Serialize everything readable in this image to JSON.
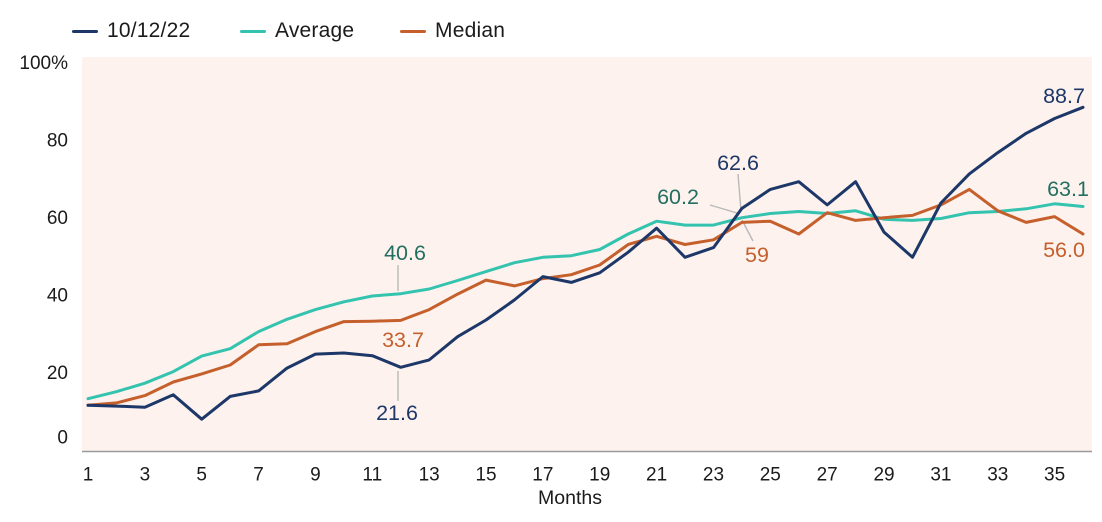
{
  "chart_data": {
    "type": "line",
    "title": "",
    "xlabel": "Months",
    "ylabel": "",
    "ylim": [
      0,
      100
    ],
    "xlim": [
      1,
      36
    ],
    "grid": false,
    "legend_position": "top-left",
    "plot_bg_color": "#fdf2ee",
    "axis_line_color": "#9a9a9a",
    "tick_text_color": "#1b1b1b",
    "connector_color": "#b8b8b8",
    "x": [
      1,
      2,
      3,
      4,
      5,
      6,
      7,
      8,
      9,
      10,
      11,
      12,
      13,
      14,
      15,
      16,
      17,
      18,
      19,
      20,
      21,
      22,
      23,
      24,
      25,
      26,
      27,
      28,
      29,
      30,
      31,
      32,
      33,
      34,
      35,
      36
    ],
    "x_tick_labels": [
      "1",
      "3",
      "5",
      "7",
      "9",
      "11",
      "13",
      "15",
      "17",
      "19",
      "21",
      "23",
      "25",
      "27",
      "29",
      "31",
      "33",
      "35"
    ],
    "x_tick_values": [
      1,
      3,
      5,
      7,
      9,
      11,
      13,
      15,
      17,
      19,
      21,
      23,
      25,
      27,
      29,
      31,
      33,
      35
    ],
    "y_ticks": [
      {
        "value": 0,
        "label": "0"
      },
      {
        "value": 20,
        "label": "20"
      },
      {
        "value": 40,
        "label": "40"
      },
      {
        "value": 60,
        "label": "60"
      },
      {
        "value": 80,
        "label": "80"
      },
      {
        "value": 100,
        "label": "100%"
      }
    ],
    "series": [
      {
        "name": "10/12/22",
        "color": "#1c3768",
        "label_color": "#1c3768",
        "values": [
          11.8,
          11.6,
          11.3,
          14.5,
          8.2,
          14.1,
          15.5,
          21.4,
          25,
          25.3,
          24.6,
          21.6,
          23.5,
          29.5,
          33.8,
          39,
          45,
          43.5,
          46,
          51.3,
          57.5,
          50,
          52.5,
          62.6,
          67.5,
          69.5,
          63.5,
          69.5,
          56.5,
          50,
          64,
          71.5,
          77,
          82,
          85.8,
          88.7
        ]
      },
      {
        "name": "Average",
        "color": "#33c3ae",
        "label_color": "#236f60",
        "values": [
          13.5,
          15.3,
          17.5,
          20.5,
          24.5,
          26.4,
          30.8,
          34,
          36.5,
          38.5,
          40,
          40.6,
          41.8,
          44,
          46.3,
          48.6,
          50,
          50.4,
          52,
          56,
          59.3,
          58.3,
          58.3,
          60.2,
          61.3,
          61.8,
          61.3,
          62,
          59.8,
          59.5,
          60,
          61.5,
          61.8,
          62.5,
          63.8,
          63.1
        ]
      },
      {
        "name": "Median",
        "color": "#c5602c",
        "label_color": "#c5602c",
        "values": [
          11.8,
          12.4,
          14.3,
          17.8,
          19.9,
          22.2,
          27.4,
          27.7,
          30.8,
          33.4,
          33.5,
          33.7,
          36.5,
          40.5,
          44.1,
          42.6,
          44.5,
          45.5,
          48,
          53.3,
          55.4,
          53.3,
          54.5,
          59,
          59.3,
          56,
          61.5,
          59.5,
          60.2,
          60.8,
          63.5,
          67.5,
          62,
          59,
          60.5,
          56
        ]
      }
    ],
    "annotations": [
      {
        "series": 1,
        "month": 12,
        "text": "40.6"
      },
      {
        "series": 2,
        "month": 12,
        "text": "33.7"
      },
      {
        "series": 0,
        "month": 12,
        "text": "21.6"
      },
      {
        "series": 0,
        "month": 24,
        "text": "62.6"
      },
      {
        "series": 1,
        "month": 24,
        "text": "60.2"
      },
      {
        "series": 2,
        "month": 24,
        "text": "59"
      },
      {
        "series": 0,
        "month": 36,
        "text": "88.7"
      },
      {
        "series": 1,
        "month": 36,
        "text": "63.1"
      },
      {
        "series": 2,
        "month": 36,
        "text": "56.0"
      }
    ]
  }
}
